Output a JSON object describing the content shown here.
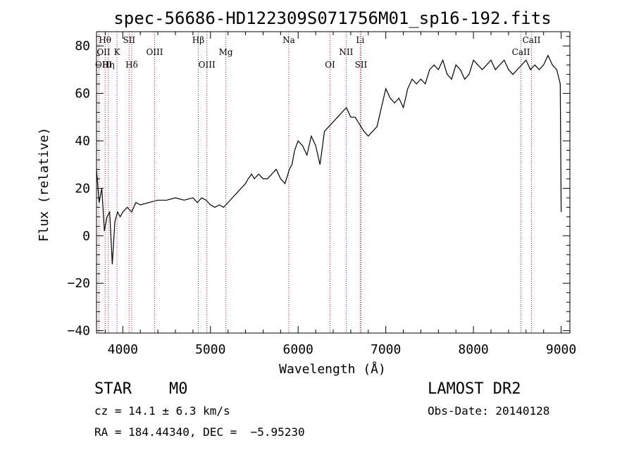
{
  "chart_data": {
    "type": "line",
    "title": "spec-56686-HD122309S071756M01_sp16-192.fits",
    "xlabel": "Wavelength (Å)",
    "ylabel": "Flux (relative)",
    "xlim": [
      3700,
      9100
    ],
    "ylim": [
      -41,
      86
    ],
    "x_ticks": [
      4000,
      5000,
      6000,
      7000,
      8000,
      9000
    ],
    "x_tick_labels": [
      "4000",
      "5000",
      "6000",
      "7000",
      "8000",
      "9000"
    ],
    "y_ticks": [
      -40,
      -20,
      0,
      20,
      40,
      60,
      80
    ],
    "y_tick_labels": [
      "−40",
      "−20",
      "0",
      "20",
      "40",
      "60",
      "80"
    ],
    "series": [
      {
        "x": [
          3700,
          3730,
          3760,
          3790,
          3820,
          3850,
          3880,
          3910,
          3940,
          3970,
          4000,
          4050,
          4100,
          4150,
          4200,
          4300,
          4400,
          4500,
          4600,
          4700,
          4800,
          4850,
          4900,
          4950,
          5000,
          5050,
          5100,
          5150,
          5200,
          5250,
          5300,
          5350,
          5400,
          5430,
          5450,
          5470,
          5500,
          5550,
          5600,
          5650,
          5700,
          5750,
          5800,
          5850,
          5900,
          5930,
          5960,
          6000,
          6050,
          6100,
          6150,
          6200,
          6250,
          6300,
          6350,
          6400,
          6450,
          6500,
          6550,
          6600,
          6650,
          6700,
          6750,
          6800,
          6850,
          6900,
          6950,
          7000,
          7050,
          7100,
          7150,
          7200,
          7250,
          7300,
          7350,
          7400,
          7450,
          7500,
          7550,
          7600,
          7650,
          7700,
          7750,
          7800,
          7850,
          7900,
          7950,
          8000,
          8050,
          8100,
          8150,
          8200,
          8250,
          8300,
          8350,
          8400,
          8450,
          8500,
          8550,
          8600,
          8650,
          8700,
          8750,
          8800,
          8850,
          8900,
          8950,
          8990,
          9000
        ],
        "y": [
          28,
          14,
          20,
          2,
          8,
          10,
          -12,
          6,
          10,
          8,
          10,
          12,
          10,
          14,
          13,
          14,
          15,
          15,
          16,
          15,
          16,
          14,
          16,
          15,
          13,
          12,
          13,
          12,
          14,
          16,
          18,
          20,
          22,
          24,
          25,
          26,
          24,
          26,
          24,
          24,
          26,
          28,
          24,
          22,
          28,
          30,
          36,
          40,
          38,
          34,
          42,
          38,
          30,
          44,
          46,
          48,
          50,
          52,
          54,
          50,
          50,
          47,
          44,
          42,
          44,
          46,
          54,
          62,
          58,
          56,
          58,
          54,
          62,
          66,
          64,
          66,
          64,
          70,
          72,
          70,
          74,
          68,
          66,
          72,
          70,
          66,
          68,
          74,
          72,
          70,
          72,
          74,
          70,
          72,
          74,
          70,
          68,
          70,
          72,
          74,
          70,
          72,
          70,
          72,
          76,
          72,
          70,
          64,
          10
        ]
      }
    ],
    "lines": [
      {
        "label": "Hθ",
        "x": 3798,
        "row": 1
      },
      {
        "label": "OII",
        "x": 3727,
        "row": 2
      },
      {
        "label": "OIII",
        "x": 3700,
        "row": 3
      },
      {
        "label": "Hη",
        "x": 3835,
        "row": 3
      },
      {
        "label": "K",
        "x": 3934,
        "row": 2
      },
      {
        "label": "SII",
        "x": 4072,
        "row": 1
      },
      {
        "label": "Hδ",
        "x": 4102,
        "row": 3
      },
      {
        "label": "OIII",
        "x": 4363,
        "row": 2
      },
      {
        "label": "Hβ",
        "x": 4861,
        "row": 1
      },
      {
        "label": "OIII",
        "x": 4959,
        "row": 3
      },
      {
        "label": "Mg",
        "x": 5175,
        "row": 2
      },
      {
        "label": "Na",
        "x": 5893,
        "row": 1
      },
      {
        "label": "OI",
        "x": 6364,
        "row": 3
      },
      {
        "label": "NII",
        "x": 6548,
        "row": 2
      },
      {
        "label": "Li",
        "x": 6708,
        "row": 1
      },
      {
        "label": "SII",
        "x": 6717,
        "row": 3
      },
      {
        "label": "CaII",
        "x": 8542,
        "row": 2
      },
      {
        "label": "CaII",
        "x": 8662,
        "row": 1
      }
    ],
    "grid": false
  },
  "info": {
    "class_text": "STAR    M0",
    "cz_text": "cz = 14.1 ± 6.3 km/s",
    "radec_text": "RA = 184.44340, DEC =  −5.95230",
    "survey_text": "LAMOST DR2",
    "obsdate_text": "Obs-Date: 20140128"
  }
}
